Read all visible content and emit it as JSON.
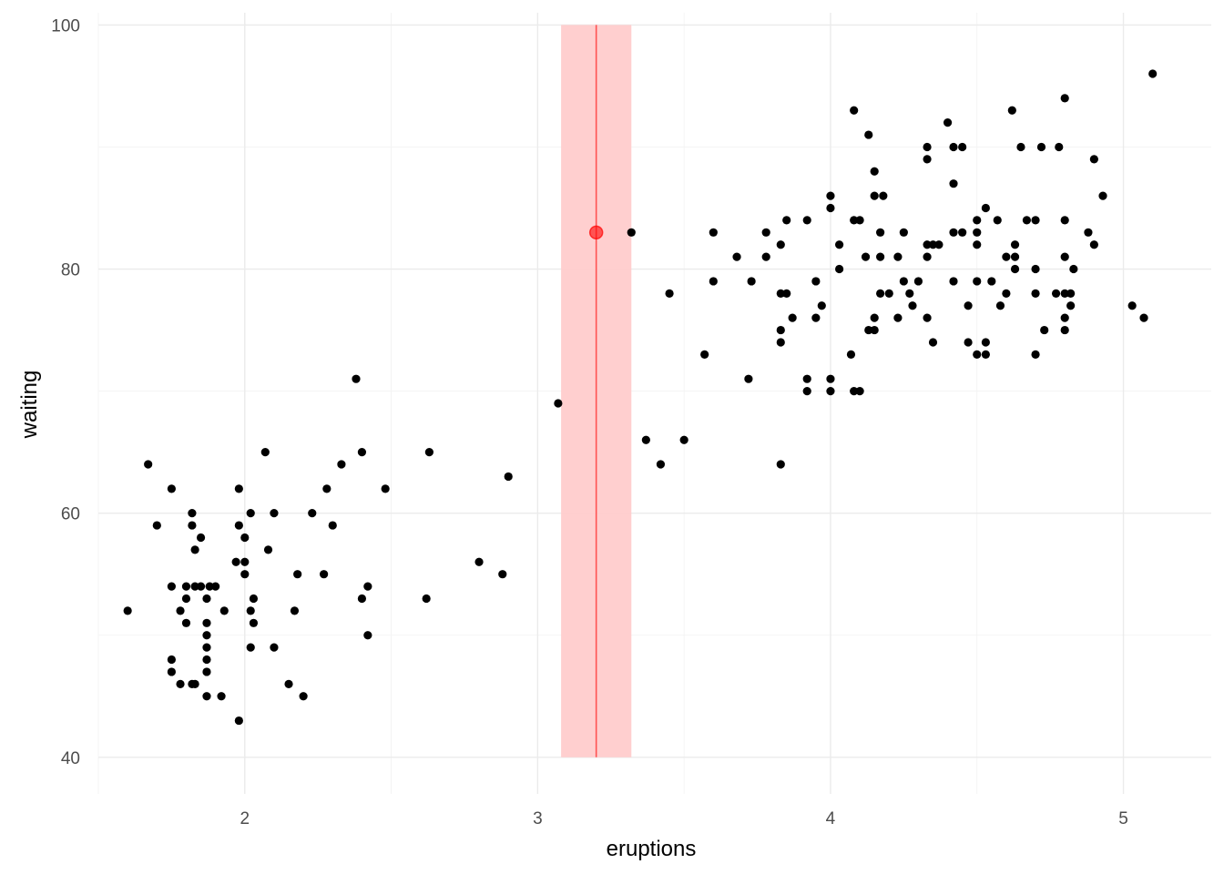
{
  "chart_data": {
    "type": "scatter",
    "title": "",
    "xlabel": "eruptions",
    "ylabel": "waiting",
    "xlim": [
      1.5,
      5.3
    ],
    "ylim": [
      37,
      101
    ],
    "x_ticks": [
      2,
      3,
      4,
      5
    ],
    "y_ticks": [
      40,
      60,
      80,
      100
    ],
    "x_tick_labels": [
      "2",
      "3",
      "4",
      "5"
    ],
    "y_tick_labels": [
      "40",
      "60",
      "80",
      "100"
    ],
    "grid": true,
    "legend": "none",
    "point_color": "#000000",
    "highlight": {
      "x": 3.2,
      "y": 83,
      "band": [
        3.08,
        3.32
      ],
      "color": "#ff0000",
      "band_color": "#ffcccc"
    },
    "points": [
      [
        1.6,
        52
      ],
      [
        1.67,
        64
      ],
      [
        1.7,
        59
      ],
      [
        1.75,
        62
      ],
      [
        1.75,
        54
      ],
      [
        1.75,
        48
      ],
      [
        1.75,
        47
      ],
      [
        1.78,
        52
      ],
      [
        1.78,
        46
      ],
      [
        1.8,
        54
      ],
      [
        1.8,
        53
      ],
      [
        1.8,
        51
      ],
      [
        1.82,
        60
      ],
      [
        1.82,
        59
      ],
      [
        1.82,
        46
      ],
      [
        1.83,
        54
      ],
      [
        1.83,
        46
      ],
      [
        1.83,
        57
      ],
      [
        1.85,
        58
      ],
      [
        1.85,
        54
      ],
      [
        1.87,
        53
      ],
      [
        1.87,
        51
      ],
      [
        1.87,
        50
      ],
      [
        1.87,
        49
      ],
      [
        1.87,
        48
      ],
      [
        1.87,
        47
      ],
      [
        1.87,
        45
      ],
      [
        1.88,
        54
      ],
      [
        1.9,
        54
      ],
      [
        1.92,
        45
      ],
      [
        1.93,
        52
      ],
      [
        1.97,
        56
      ],
      [
        1.98,
        62
      ],
      [
        1.98,
        59
      ],
      [
        1.98,
        43
      ],
      [
        2.0,
        58
      ],
      [
        2.0,
        56
      ],
      [
        2.0,
        55
      ],
      [
        2.02,
        60
      ],
      [
        2.02,
        52
      ],
      [
        2.02,
        49
      ],
      [
        2.03,
        53
      ],
      [
        2.03,
        51
      ],
      [
        2.07,
        65
      ],
      [
        2.08,
        57
      ],
      [
        2.1,
        60
      ],
      [
        2.1,
        49
      ],
      [
        2.15,
        46
      ],
      [
        2.17,
        52
      ],
      [
        2.18,
        55
      ],
      [
        2.2,
        45
      ],
      [
        2.23,
        60
      ],
      [
        2.27,
        55
      ],
      [
        2.28,
        62
      ],
      [
        2.3,
        59
      ],
      [
        2.33,
        64
      ],
      [
        2.38,
        71
      ],
      [
        2.4,
        65
      ],
      [
        2.4,
        53
      ],
      [
        2.42,
        54
      ],
      [
        2.42,
        50
      ],
      [
        2.48,
        62
      ],
      [
        2.62,
        53
      ],
      [
        2.63,
        65
      ],
      [
        2.8,
        56
      ],
      [
        2.88,
        55
      ],
      [
        2.9,
        63
      ],
      [
        3.07,
        69
      ],
      [
        3.32,
        83
      ],
      [
        3.37,
        66
      ],
      [
        3.42,
        64
      ],
      [
        3.45,
        78
      ],
      [
        3.5,
        66
      ],
      [
        3.57,
        73
      ],
      [
        3.6,
        83
      ],
      [
        3.6,
        79
      ],
      [
        3.68,
        81
      ],
      [
        3.72,
        71
      ],
      [
        3.73,
        79
      ],
      [
        3.78,
        83
      ],
      [
        3.78,
        81
      ],
      [
        3.83,
        82
      ],
      [
        3.83,
        75
      ],
      [
        3.83,
        74
      ],
      [
        3.83,
        64
      ],
      [
        3.83,
        78
      ],
      [
        3.85,
        84
      ],
      [
        3.85,
        78
      ],
      [
        3.87,
        76
      ],
      [
        3.92,
        84
      ],
      [
        3.92,
        71
      ],
      [
        3.92,
        70
      ],
      [
        3.95,
        79
      ],
      [
        3.95,
        76
      ],
      [
        3.97,
        77
      ],
      [
        4.0,
        86
      ],
      [
        4.0,
        85
      ],
      [
        4.0,
        71
      ],
      [
        4.0,
        70
      ],
      [
        4.03,
        82
      ],
      [
        4.03,
        80
      ],
      [
        4.07,
        73
      ],
      [
        4.08,
        93
      ],
      [
        4.08,
        84
      ],
      [
        4.08,
        70
      ],
      [
        4.1,
        84
      ],
      [
        4.1,
        70
      ],
      [
        4.12,
        81
      ],
      [
        4.13,
        91
      ],
      [
        4.13,
        75
      ],
      [
        4.15,
        88
      ],
      [
        4.15,
        86
      ],
      [
        4.15,
        76
      ],
      [
        4.15,
        75
      ],
      [
        4.17,
        83
      ],
      [
        4.17,
        81
      ],
      [
        4.17,
        78
      ],
      [
        4.18,
        86
      ],
      [
        4.2,
        78
      ],
      [
        4.23,
        81
      ],
      [
        4.23,
        76
      ],
      [
        4.25,
        83
      ],
      [
        4.25,
        79
      ],
      [
        4.27,
        78
      ],
      [
        4.28,
        77
      ],
      [
        4.3,
        79
      ],
      [
        4.33,
        90
      ],
      [
        4.33,
        89
      ],
      [
        4.33,
        82
      ],
      [
        4.33,
        81
      ],
      [
        4.33,
        76
      ],
      [
        4.35,
        82
      ],
      [
        4.35,
        74
      ],
      [
        4.37,
        82
      ],
      [
        4.4,
        92
      ],
      [
        4.42,
        90
      ],
      [
        4.42,
        87
      ],
      [
        4.42,
        83
      ],
      [
        4.42,
        79
      ],
      [
        4.45,
        90
      ],
      [
        4.45,
        83
      ],
      [
        4.47,
        77
      ],
      [
        4.47,
        74
      ],
      [
        4.5,
        84
      ],
      [
        4.5,
        83
      ],
      [
        4.5,
        82
      ],
      [
        4.5,
        79
      ],
      [
        4.5,
        73
      ],
      [
        4.53,
        85
      ],
      [
        4.53,
        74
      ],
      [
        4.53,
        73
      ],
      [
        4.55,
        79
      ],
      [
        4.57,
        84
      ],
      [
        4.58,
        77
      ],
      [
        4.6,
        81
      ],
      [
        4.6,
        78
      ],
      [
        4.62,
        93
      ],
      [
        4.63,
        82
      ],
      [
        4.63,
        81
      ],
      [
        4.63,
        80
      ],
      [
        4.65,
        90
      ],
      [
        4.67,
        84
      ],
      [
        4.7,
        84
      ],
      [
        4.7,
        80
      ],
      [
        4.7,
        78
      ],
      [
        4.7,
        73
      ],
      [
        4.72,
        90
      ],
      [
        4.73,
        75
      ],
      [
        4.77,
        78
      ],
      [
        4.78,
        90
      ],
      [
        4.8,
        94
      ],
      [
        4.8,
        84
      ],
      [
        4.8,
        81
      ],
      [
        4.8,
        78
      ],
      [
        4.8,
        76
      ],
      [
        4.8,
        75
      ],
      [
        4.82,
        77
      ],
      [
        4.82,
        78
      ],
      [
        4.83,
        80
      ],
      [
        4.88,
        83
      ],
      [
        4.9,
        89
      ],
      [
        4.9,
        82
      ],
      [
        4.93,
        86
      ],
      [
        5.03,
        77
      ],
      [
        5.07,
        76
      ],
      [
        5.1,
        96
      ]
    ]
  }
}
